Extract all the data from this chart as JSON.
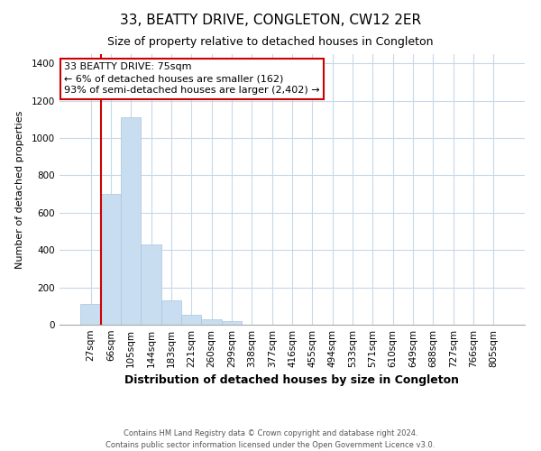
{
  "title": "33, BEATTY DRIVE, CONGLETON, CW12 2ER",
  "subtitle": "Size of property relative to detached houses in Congleton",
  "xlabel": "Distribution of detached houses by size in Congleton",
  "ylabel": "Number of detached properties",
  "bar_labels": [
    "27sqm",
    "66sqm",
    "105sqm",
    "144sqm",
    "183sqm",
    "221sqm",
    "260sqm",
    "299sqm",
    "338sqm",
    "377sqm",
    "416sqm",
    "455sqm",
    "494sqm",
    "533sqm",
    "571sqm",
    "610sqm",
    "649sqm",
    "688sqm",
    "727sqm",
    "766sqm",
    "805sqm"
  ],
  "bar_values": [
    110,
    700,
    1110,
    430,
    130,
    55,
    30,
    18,
    0,
    0,
    0,
    0,
    0,
    0,
    0,
    0,
    0,
    0,
    0,
    0,
    0
  ],
  "bar_color": "#c9ddf0",
  "bar_edge_color": "#a8c4e0",
  "vline_position": 1.5,
  "vline_color": "#cc0000",
  "ylim": [
    0,
    1450
  ],
  "yticks": [
    0,
    200,
    400,
    600,
    800,
    1000,
    1200,
    1400
  ],
  "annotation_title": "33 BEATTY DRIVE: 75sqm",
  "annotation_line1": "← 6% of detached houses are smaller (162)",
  "annotation_line2": "93% of semi-detached houses are larger (2,402) →",
  "vline_box_color": "#ffffff",
  "vline_box_edge": "#cc0000",
  "footer_line1": "Contains HM Land Registry data © Crown copyright and database right 2024.",
  "footer_line2": "Contains public sector information licensed under the Open Government Licence v3.0.",
  "background_color": "#ffffff",
  "grid_color": "#c8d8ea",
  "title_fontsize": 11,
  "subtitle_fontsize": 9,
  "xlabel_fontsize": 9,
  "ylabel_fontsize": 8,
  "tick_fontsize": 7.5,
  "annotation_fontsize": 8,
  "footer_fontsize": 6
}
